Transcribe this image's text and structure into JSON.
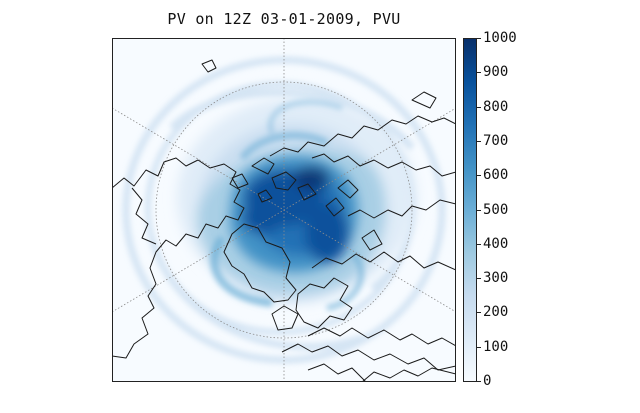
{
  "title": "PV on 12Z 03-01-2009, PVU",
  "colorbar": {
    "ticks": [
      "1000",
      "900",
      "800",
      "700",
      "600",
      "500",
      "400",
      "300",
      "200",
      "100",
      "0"
    ],
    "min": 0,
    "max": 1000,
    "colors": [
      "#f7fbff",
      "#deebf7",
      "#c6dbef",
      "#9ecae1",
      "#6baed6",
      "#4292c6",
      "#2171b5",
      "#08519c",
      "#08306b"
    ]
  },
  "map": {
    "projection": "north polar stereographic",
    "field": "potential vorticity",
    "coastline_color": "#1a1a1a",
    "graticule_color": "#8c8c8c"
  }
}
